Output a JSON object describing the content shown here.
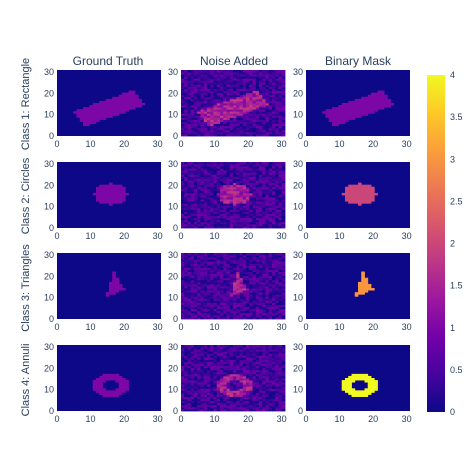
{
  "chart_data": {
    "type": "heatmap",
    "column_titles": [
      "Ground Truth",
      "Noise Added",
      "Binary Mask"
    ],
    "row_titles": [
      "Class 1: Rectangle",
      "Class 2: Circles",
      "Class 3: Triangles",
      "Class 4: Annuli"
    ],
    "grid_size": 32,
    "x_ticks": [
      0,
      10,
      20,
      30
    ],
    "y_ticks": [
      0,
      10,
      20,
      30
    ],
    "xlim": [
      0,
      31
    ],
    "ylim": [
      0,
      31
    ],
    "colorscale": "plasma",
    "colorscale_colors": [
      "#0d0887",
      "#46039f",
      "#7201a8",
      "#9c179e",
      "#bd3786",
      "#d8576b",
      "#ed7953",
      "#fb9f3a",
      "#fdca26",
      "#f0f921"
    ],
    "colorbar": {
      "range": [
        0,
        4
      ],
      "ticks": [
        0,
        0.5,
        1,
        1.5,
        2,
        2.5,
        3,
        3.5,
        4
      ]
    },
    "classes": [
      {
        "name": "Class 1: Rectangle",
        "shape": "rotated-rectangle",
        "center": [
          15.5,
          13
        ],
        "half_length": 10.5,
        "half_width": 4,
        "angle_deg": 29,
        "ground_truth_value": 1.0,
        "mask_value": 1.0,
        "noise_amplitude": 0.55
      },
      {
        "name": "Class 2: Circles",
        "shape": "disk",
        "center": [
          16,
          16
        ],
        "radius": 5,
        "ground_truth_value": 1.0,
        "mask_value": 2.0,
        "noise_amplitude": 0.55
      },
      {
        "name": "Class 3: Triangles",
        "shape": "triangle",
        "vertices": [
          [
            17,
            22
          ],
          [
            14.5,
            10
          ],
          [
            20,
            14
          ]
        ],
        "ground_truth_value": 1.0,
        "mask_value": 3.0,
        "noise_amplitude": 0.55
      },
      {
        "name": "Class 4: Annuli",
        "shape": "annulus",
        "center": [
          16,
          12
        ],
        "inner_radius": 2.5,
        "outer_radius": 5.5,
        "ground_truth_value": 1.0,
        "mask_value": 4.0,
        "noise_amplitude": 0.55
      }
    ]
  }
}
